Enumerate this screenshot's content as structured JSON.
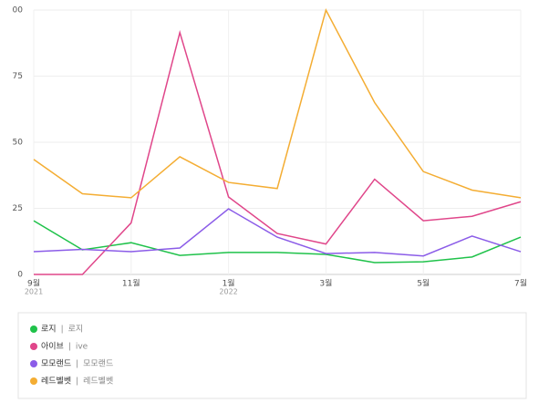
{
  "chart_data": {
    "type": "line",
    "categories": [
      "9월",
      null,
      "11월",
      null,
      "1월",
      null,
      "3월",
      null,
      "5월",
      null,
      "7월"
    ],
    "category_years": [
      "2021",
      null,
      null,
      null,
      "2022",
      null,
      null,
      null,
      null,
      null,
      null
    ],
    "series": [
      {
        "name": "로지",
        "keyword": "로지",
        "color": "#1fc24a",
        "values": [
          20.3,
          9.3,
          12,
          7.2,
          8.3,
          8.3,
          7.6,
          4.5,
          4.8,
          6.6,
          14.1
        ]
      },
      {
        "name": "아이브",
        "keyword": "ive",
        "color": "#e0468a",
        "values": [
          0,
          0,
          19.5,
          91.5,
          29.3,
          15.5,
          11.5,
          36,
          20.3,
          22,
          27.5
        ]
      },
      {
        "name": "모모랜드",
        "keyword": "모모랜드",
        "color": "#8b5ce8",
        "values": [
          8.6,
          9.5,
          8.6,
          10,
          24.8,
          14.1,
          7.9,
          8.3,
          7,
          14.5,
          8.6
        ]
      },
      {
        "name": "레드벨벳",
        "keyword": "레드벨벳",
        "color": "#f4ad33",
        "values": [
          43.5,
          30.5,
          29,
          44.5,
          34.8,
          32.5,
          100,
          65,
          38.9,
          31.9,
          29
        ]
      }
    ],
    "ylim": [
      0,
      100
    ],
    "yticks": [
      0,
      25,
      50,
      75,
      {
        "value": 100,
        "label": "00"
      }
    ],
    "grid": true
  }
}
